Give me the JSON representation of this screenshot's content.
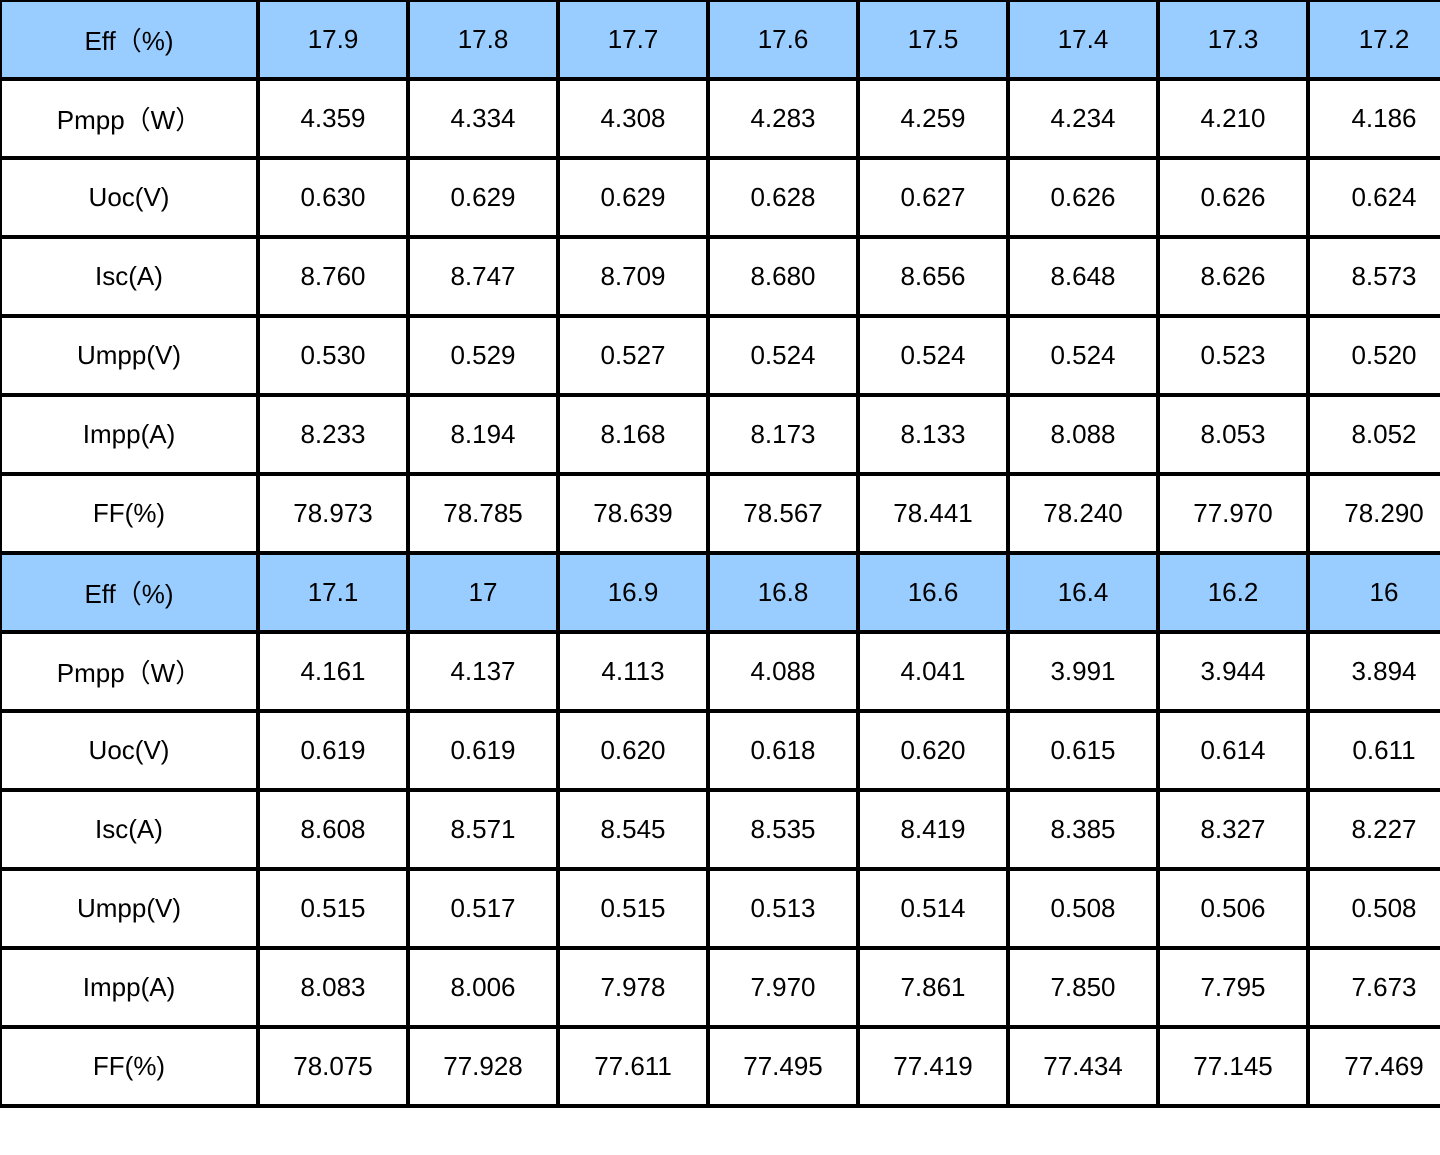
{
  "colors": {
    "header_background": "#99ccff",
    "cell_background": "#ffffff",
    "grid_line": "#000000"
  },
  "blocks": [
    {
      "rows": [
        {
          "label": "Eff（%)",
          "header": true,
          "values": [
            "17.9",
            "17.8",
            "17.7",
            "17.6",
            "17.5",
            "17.4",
            "17.3",
            "17.2"
          ]
        },
        {
          "label": "Pmpp（W）",
          "header": false,
          "values": [
            "4.359",
            "4.334",
            "4.308",
            "4.283",
            "4.259",
            "4.234",
            "4.210",
            "4.186"
          ]
        },
        {
          "label": "Uoc(V)",
          "header": false,
          "values": [
            "0.630",
            "0.629",
            "0.629",
            "0.628",
            "0.627",
            "0.626",
            "0.626",
            "0.624"
          ]
        },
        {
          "label": "Isc(A)",
          "header": false,
          "values": [
            "8.760",
            "8.747",
            "8.709",
            "8.680",
            "8.656",
            "8.648",
            "8.626",
            "8.573"
          ]
        },
        {
          "label": "Umpp(V)",
          "header": false,
          "values": [
            "0.530",
            "0.529",
            "0.527",
            "0.524",
            "0.524",
            "0.524",
            "0.523",
            "0.520"
          ]
        },
        {
          "label": "Impp(A)",
          "header": false,
          "values": [
            "8.233",
            "8.194",
            "8.168",
            "8.173",
            "8.133",
            "8.088",
            "8.053",
            "8.052"
          ]
        },
        {
          "label": "FF(%)",
          "header": false,
          "values": [
            "78.973",
            "78.785",
            "78.639",
            "78.567",
            "78.441",
            "78.240",
            "77.970",
            "78.290"
          ]
        }
      ]
    },
    {
      "rows": [
        {
          "label": "Eff（%)",
          "header": true,
          "values": [
            "17.1",
            "17",
            "16.9",
            "16.8",
            "16.6",
            "16.4",
            "16.2",
            "16"
          ]
        },
        {
          "label": "Pmpp（W）",
          "header": false,
          "values": [
            "4.161",
            "4.137",
            "4.113",
            "4.088",
            "4.041",
            "3.991",
            "3.944",
            "3.894"
          ]
        },
        {
          "label": "Uoc(V)",
          "header": false,
          "values": [
            "0.619",
            "0.619",
            "0.620",
            "0.618",
            "0.620",
            "0.615",
            "0.614",
            "0.611"
          ]
        },
        {
          "label": "Isc(A)",
          "header": false,
          "values": [
            "8.608",
            "8.571",
            "8.545",
            "8.535",
            "8.419",
            "8.385",
            "8.327",
            "8.227"
          ]
        },
        {
          "label": "Umpp(V)",
          "header": false,
          "values": [
            "0.515",
            "0.517",
            "0.515",
            "0.513",
            "0.514",
            "0.508",
            "0.506",
            "0.508"
          ]
        },
        {
          "label": "Impp(A)",
          "header": false,
          "values": [
            "8.083",
            "8.006",
            "7.978",
            "7.970",
            "7.861",
            "7.850",
            "7.795",
            "7.673"
          ]
        },
        {
          "label": "FF(%)",
          "header": false,
          "values": [
            "78.075",
            "77.928",
            "77.611",
            "77.495",
            "77.419",
            "77.434",
            "77.145",
            "77.469"
          ]
        }
      ]
    }
  ]
}
